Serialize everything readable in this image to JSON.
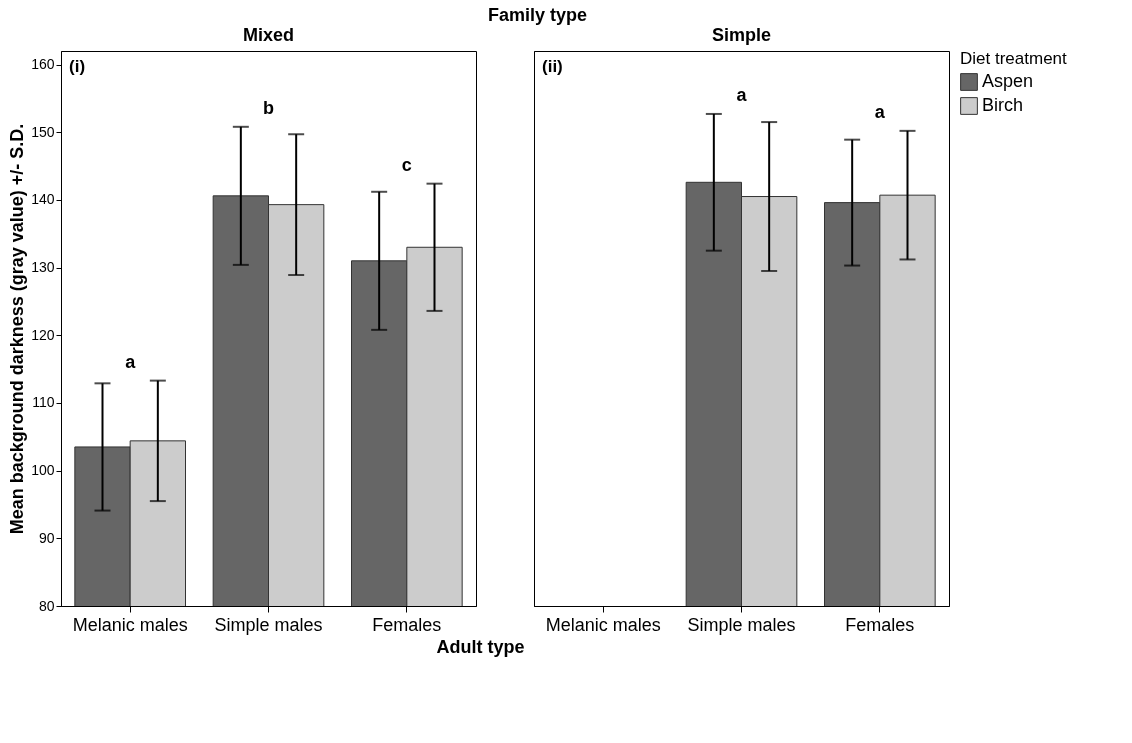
{
  "chart_data": [
    {
      "type": "bar",
      "title": "Mixed",
      "xlabel": "Adult type",
      "legend_title": "Diet treatment",
      "legend": "top right",
      "ylabel": "Mean background darkness (gray value) +/- S.D.",
      "categories": [
        "Melanic males",
        "Simple males",
        "Females"
      ],
      "series": [
        {
          "name": "Aspen",
          "color": "#666666",
          "values": [
            103.5,
            140.6,
            131.0
          ],
          "errors": [
            9.4,
            10.2,
            10.2
          ]
        },
        {
          "name": "Birch",
          "color": "#cccccc",
          "values": [
            104.4,
            139.3,
            133.0
          ],
          "errors": [
            8.9,
            10.4,
            9.4
          ]
        }
      ],
      "ylim": [
        80,
        162
      ],
      "yticks": [
        80,
        90,
        100,
        110,
        120,
        130,
        140,
        150,
        160
      ],
      "annotations": [
        "Family type",
        "(i)",
        "a",
        "b",
        "c"
      ]
    },
    {
      "type": "bar",
      "title": "Simple",
      "categories": [
        "Melanic males",
        "Simple males",
        "Females"
      ],
      "series": [
        {
          "name": "Aspen",
          "color": "#666666",
          "values": [
            null,
            142.6,
            139.6
          ],
          "errors": [
            null,
            10.1,
            9.3
          ]
        },
        {
          "name": "Birch",
          "color": "#cccccc",
          "values": [
            null,
            140.5,
            140.7
          ],
          "errors": [
            null,
            11.0,
            9.5
          ]
        }
      ],
      "ylim": [
        80,
        162
      ],
      "yticks": [
        80,
        90,
        100,
        110,
        120,
        130,
        140,
        150,
        160
      ],
      "tick_labels": "x",
      "annotations": [
        "(ii)",
        "a",
        "a"
      ]
    }
  ]
}
